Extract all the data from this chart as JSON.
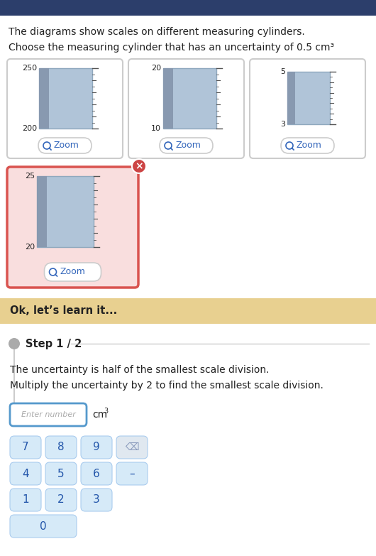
{
  "title_text": "The diagrams show scales on different measuring cylinders.",
  "subtitle_text": "Choose the measuring cylinder that has an uncertainty of 0.5 cm³",
  "learn_text": "Ok, let’s learn it...",
  "step_text": "Step 1 / 2",
  "step_desc1": "The uncertainty is half of the smallest scale division.",
  "step_desc2": "Multiply the uncertainty by 2 to find the smallest scale division.",
  "enter_placeholder": "Enter number",
  "cm3_label": "cm³",
  "header_color": "#3d5a80",
  "white_bg": "#ffffff",
  "light_gray_bg": "#f2f2f2",
  "box_border": "#cccccc",
  "sel_box_border": "#d9534f",
  "sel_box_bg": "#f9dede",
  "cylinder_fill": "#b0c4d8",
  "cylinder_dark": "#8fa8be",
  "tick_color": "#555555",
  "zoom_color": "#3366bb",
  "zoom_bg": "#ffffff",
  "zoom_border": "#cccccc",
  "learn_bg": "#e8d090",
  "learn_text_color": "#222222",
  "step_dot_color": "#999999",
  "step_line_color": "#cccccc",
  "input_border": "#5599cc",
  "keypad_bg": "#d6eaf8",
  "keypad_border": "#aaccee",
  "keypad_text": "#2255aa",
  "text_color": "#222222",
  "light_text": "#999999",
  "top_bar_color": "#2c3e6b"
}
